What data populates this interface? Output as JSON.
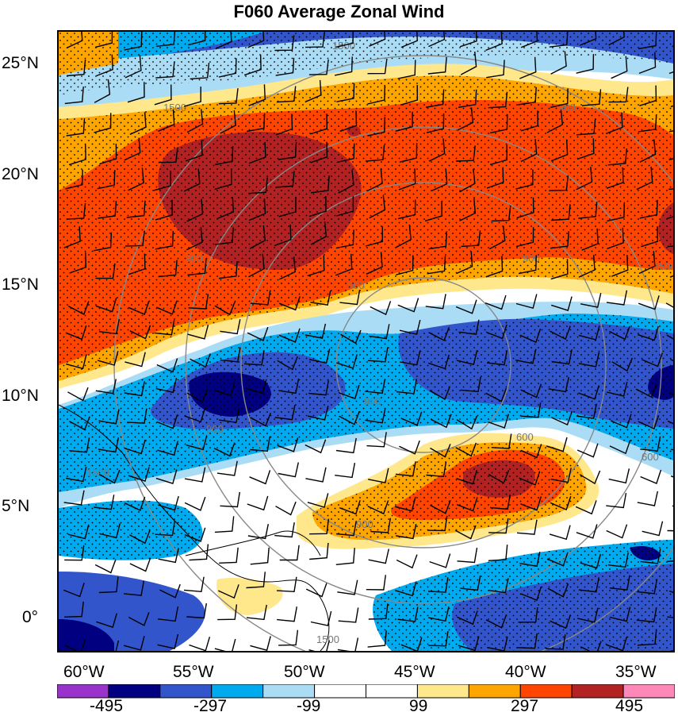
{
  "title": "F060 Average Zonal Wind",
  "lat_labels": [
    "25°N",
    "20°N",
    "15°N",
    "10°N",
    "5°N",
    "0°"
  ],
  "lon_labels": [
    "60°W",
    "55°W",
    "50°W",
    "45°W",
    "40°W",
    "35°W"
  ],
  "colorbar": {
    "tick_labels": [
      "-495",
      "-297",
      "-99",
      "99",
      "297",
      "495"
    ],
    "colors": [
      "#9933cc",
      "#000080",
      "#3355cc",
      "#00aaee",
      "#aaddf5",
      "#ffffff",
      "#ffffff",
      "#ffe88c",
      "#ffa500",
      "#ff4500",
      "#b22222",
      "#ff88bb"
    ]
  },
  "contour_labels": [
    "1500",
    "1500",
    "900",
    "300",
    "900",
    "900",
    "900",
    "900",
    "900",
    "600",
    "1500",
    "1500",
    "600",
    "1500"
  ],
  "colors": {
    "deep_red": "#b22222",
    "red": "#ff4500",
    "orange": "#ffa500",
    "yellow": "#ffe88c",
    "light_blue": "#aaddf5",
    "sky": "#00aaee",
    "blue": "#3355cc",
    "navy": "#000080"
  }
}
